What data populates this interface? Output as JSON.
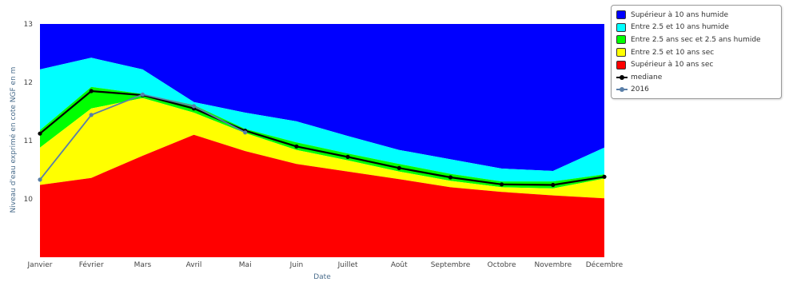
{
  "chart_data": {
    "type": "area",
    "xlabel": "Date",
    "ylabel": "Niveau d'eau exprimé en cote NGF en m",
    "categories": [
      "Janvier",
      "Février",
      "Mars",
      "Avril",
      "Mai",
      "Juin",
      "Juillet",
      "Août",
      "Septembre",
      "Octobre",
      "Novembre",
      "Décembre"
    ],
    "ylim": [
      9,
      13
    ],
    "yticks": [
      10,
      11,
      12,
      13
    ],
    "ytick_labels": [
      "10",
      "11",
      "12",
      "13"
    ],
    "bands": [
      {
        "name": "Supérieur à 10 ans humide",
        "color": "#0000ff",
        "lower": [
          12.22,
          12.42,
          12.22,
          11.66,
          11.48,
          11.33,
          11.08,
          10.84,
          10.68,
          10.52,
          10.48,
          10.88
        ],
        "upper": [
          13,
          13,
          13,
          13,
          13,
          13,
          13,
          13,
          13,
          13,
          13,
          13
        ]
      },
      {
        "name": "Entre 2.5 et 10 ans humide",
        "color": "#00ffff",
        "lower": [
          11.18,
          11.92,
          11.8,
          11.61,
          11.2,
          10.97,
          10.78,
          10.6,
          10.43,
          10.3,
          10.3,
          10.42
        ],
        "upper": [
          12.22,
          12.42,
          12.22,
          11.66,
          11.48,
          11.33,
          11.08,
          10.84,
          10.68,
          10.52,
          10.48,
          10.88
        ]
      },
      {
        "name": "Entre 2.5 ans sec et 2.5 ans humide",
        "color": "#00ff00",
        "lower": [
          10.88,
          11.55,
          11.73,
          11.48,
          11.13,
          10.84,
          10.66,
          10.47,
          10.31,
          10.2,
          10.18,
          10.35
        ],
        "upper": [
          11.18,
          11.92,
          11.8,
          11.61,
          11.2,
          10.97,
          10.78,
          10.6,
          10.43,
          10.3,
          10.3,
          10.42
        ]
      },
      {
        "name": "Entre 2.5 et 10 ans sec",
        "color": "#ffff00",
        "lower": [
          10.24,
          10.36,
          10.74,
          11.1,
          10.82,
          10.6,
          10.47,
          10.34,
          10.2,
          10.12,
          10.06,
          10.01
        ],
        "upper": [
          10.88,
          11.55,
          11.73,
          11.48,
          11.13,
          10.84,
          10.66,
          10.47,
          10.31,
          10.2,
          10.18,
          10.35
        ]
      },
      {
        "name": "Supérieur à 10 ans sec",
        "color": "#ff0000",
        "lower": [
          9,
          9,
          9,
          9,
          9,
          9,
          9,
          9,
          9,
          9,
          9,
          9
        ],
        "upper": [
          10.24,
          10.36,
          10.74,
          11.1,
          10.82,
          10.6,
          10.47,
          10.34,
          10.2,
          10.12,
          10.06,
          10.01
        ]
      }
    ],
    "series": [
      {
        "name": "mediane",
        "color": "#000000",
        "values": [
          11.12,
          11.85,
          11.78,
          11.55,
          11.17,
          10.9,
          10.72,
          10.53,
          10.37,
          10.25,
          10.24,
          10.38
        ]
      },
      {
        "name": "2016",
        "color": "#5a7fa8",
        "values": [
          10.33,
          11.44,
          11.79,
          11.59,
          11.14,
          null,
          null,
          null,
          null,
          null,
          null,
          null
        ]
      }
    ],
    "legend_position": "top-right",
    "grid": false
  }
}
